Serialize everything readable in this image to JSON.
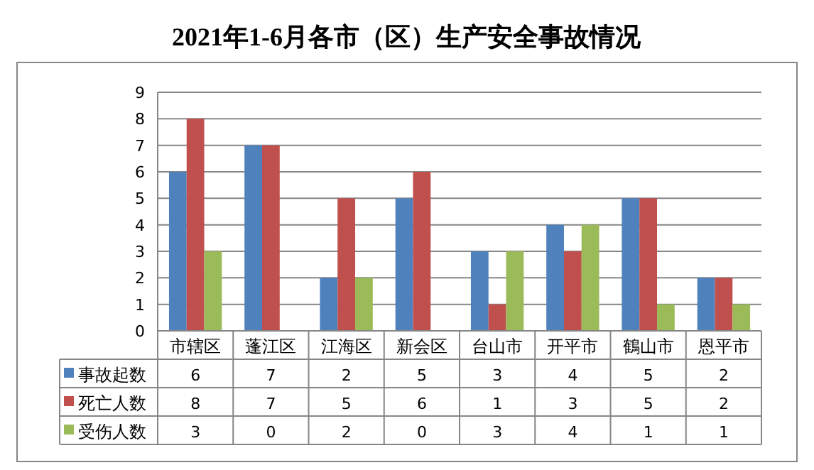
{
  "chart_data": {
    "type": "bar",
    "title": "2021年1-6月各市（区）生产安全事故情况",
    "categories": [
      "市辖区",
      "蓬江区",
      "江海区",
      "新会区",
      "台山市",
      "开平市",
      "鶴山市",
      "恩平市"
    ],
    "series": [
      {
        "name": "事故起数",
        "color": "#4f81bd",
        "values": [
          6,
          7,
          2,
          5,
          3,
          4,
          5,
          2
        ]
      },
      {
        "name": "死亡人数",
        "color": "#c0504d",
        "values": [
          8,
          7,
          5,
          6,
          1,
          3,
          5,
          2
        ]
      },
      {
        "name": "受伤人数",
        "color": "#9bbb59",
        "values": [
          3,
          0,
          2,
          0,
          3,
          4,
          1,
          1
        ]
      }
    ],
    "ylim": [
      0,
      9
    ],
    "yticks": [
      0,
      1,
      2,
      3,
      4,
      5,
      6,
      7,
      8,
      9
    ],
    "grid": "y",
    "legend": "left",
    "data_labels": true
  }
}
